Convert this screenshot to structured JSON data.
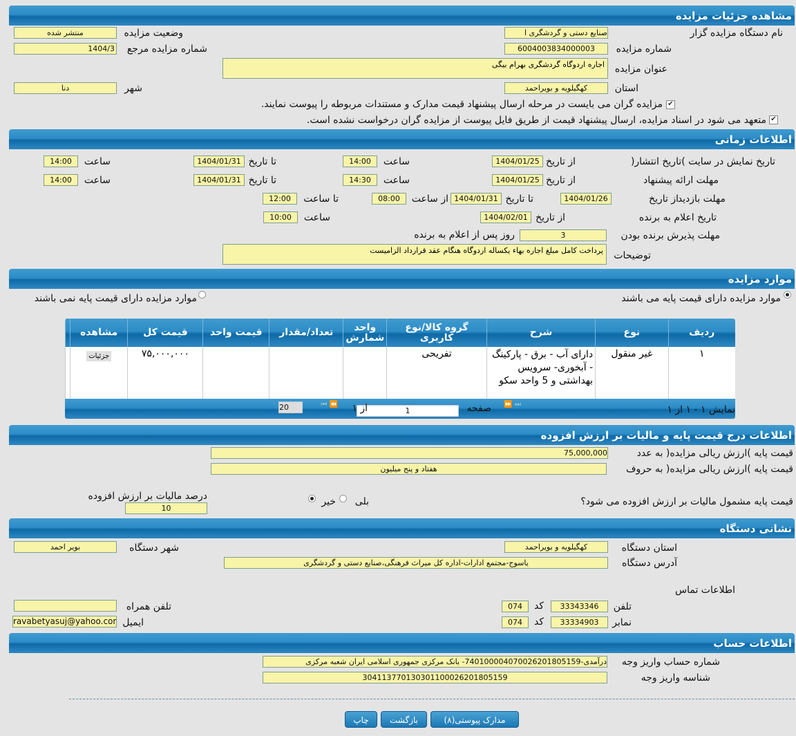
{
  "details": {
    "title": "مشاهده جزئیات مزایده",
    "org_label": "نام دستگاه مزایده گزار",
    "org_value": "صنایع دستی و گردشگری ا",
    "status_label": "وضعیت مزایده",
    "status_value": "منتشر شده",
    "number_label": "شماره مزایده",
    "number_value": "6004003834000003",
    "ref_label": "شماره مزایده مرجع",
    "ref_value": "1404/3",
    "subject_label": "عنوان مزایده",
    "subject_value": "اجاره اردوگاه گردشگری بهرام بیگی",
    "province_label": "استان",
    "province_value": "کهگیلویه و بویراحمد",
    "city_label": "شهر",
    "city_value": "دنا",
    "check1": "مزایده گران می بایست در مرحله ارسال پیشنهاد قیمت مدارک و مستندات مربوطه را پیوست نمایند.",
    "check2": "متعهد می شود در اسناد مزایده، ارسال پیشنهاد قیمت از طریق فایل پیوست از مزایده گران درخواست نشده است."
  },
  "timing": {
    "title": "اطلاعات زمانی",
    "from_date": "از تاریخ",
    "to_date": "تا تاریخ",
    "time": "ساعت",
    "from_time": "از ساعت",
    "to_time": "تا ساعت",
    "display_label": "تاریخ نمایش در سایت )تاریخ انتشار(",
    "display_from": "1404/01/25",
    "display_from_time": "14:00",
    "display_to": "1404/01/31",
    "display_to_time": "14:00",
    "offer_label": "مهلت ارائه پیشنهاد",
    "offer_from": "1404/01/25",
    "offer_from_time": "14:30",
    "offer_to": "1404/01/31",
    "offer_to_time": "14:00",
    "visit_label": "مهلت بازدید",
    "visit_from": "1404/01/26",
    "visit_to": "1404/01/31",
    "visit_from_time": "08:00",
    "visit_to_time": "12:00",
    "announce_label": "تاریخ اعلام به برنده",
    "announce_date": "1404/02/01",
    "announce_time": "10:00",
    "accept_label": "مهلت پذیرش برنده بودن",
    "accept_days": "3",
    "accept_suffix": "روز پس از اعلام به برنده",
    "notes_label": "توضیحات",
    "notes_value": "پرداخت کامل مبلغ اجاره بهاء یکساله اردوگاه هنگام عقد قرارداد الزامیست"
  },
  "items": {
    "title": "موارد مزایده",
    "radio_with": "موارد مزایده دارای قیمت پایه می باشند",
    "radio_without": "موارد مزایده دارای قیمت پایه نمی باشند",
    "columns": [
      "ردیف",
      "نوع",
      "شرح",
      "گروه کالا/نوع کاربری",
      "واحد شمارش",
      "تعداد/مقدار",
      "قیمت واحد",
      "قیمت کل",
      "مشاهده"
    ],
    "rows": [
      {
        "row": "۱",
        "type": "غیر منقول",
        "desc": "دارای آب - برق - پارکینگ - آبخوری- سرویس بهداشتی و 5 واحد سکو",
        "group": "تفریحی",
        "unit": "",
        "qty": "",
        "unit_price": "",
        "total": "۷۵,۰۰۰,۰۰۰",
        "view": "جزئیات"
      }
    ],
    "pager": {
      "showing": "نمایش ۱ - ۱ از ۱",
      "page_label": "صفحه",
      "page": "1",
      "of": "از ۱",
      "page_size": "20"
    }
  },
  "pricing": {
    "title": "اطلاعات درج قیمت پایه و مالیات بر ارزش افزوده",
    "num_label": "قیمت پایه )ارزش ریالی مزایده( به عدد",
    "num_value": "75,000,000",
    "words_label": "قیمت پایه )ارزش ریالی مزایده( به حروف",
    "words_value": "هفتاد و پنج میلیون",
    "vat_question": "قیمت پایه مشمول مالیات بر ارزش افزوده می شود؟",
    "yes": "بلی",
    "no": "خیر",
    "vat_pct_label": "درصد مالیات بر ارزش افزوده",
    "vat_pct_value": "10"
  },
  "address": {
    "title": "نشانی دستگاه",
    "province_label": "استان دستگاه",
    "province_value": "کهگیلویه و بویراحمد",
    "city_label": "شهر دستگاه",
    "city_value": "بویر احمد",
    "addr_label": "آدرس دستگاه",
    "addr_value": "یاسوج-مجتمع ادارات-اداره کل میراث فرهنگی،صنایع دستی و گردشگری",
    "contact_title": "اطلاعات تماس",
    "phone_label": "تلفن",
    "phone_value": "33343346",
    "code_label": "کد",
    "phone_code": "074",
    "fax_label": "نمابر",
    "fax_value": "33334903",
    "fax_code": "074",
    "mobile_label": "تلفن همراه",
    "mobile_value": "",
    "email_label": "ایمیل",
    "email_value": "ravabetyasuj@yahoo.com"
  },
  "account": {
    "title": "اطلاعات حساب",
    "acc_label": "شماره حساب واریز وجه",
    "acc_value": "درآمدی-740100004070026201805159- بانک مرکزی جمهوری اسلامی ایران شعبه مرکزی",
    "id_label": "شناسه واریز وجه",
    "id_value": "304113770130301100026201805159"
  },
  "buttons": {
    "attachments": "مدارک پیوستی(۸)",
    "back": "بازگشت",
    "print": "چاپ"
  }
}
